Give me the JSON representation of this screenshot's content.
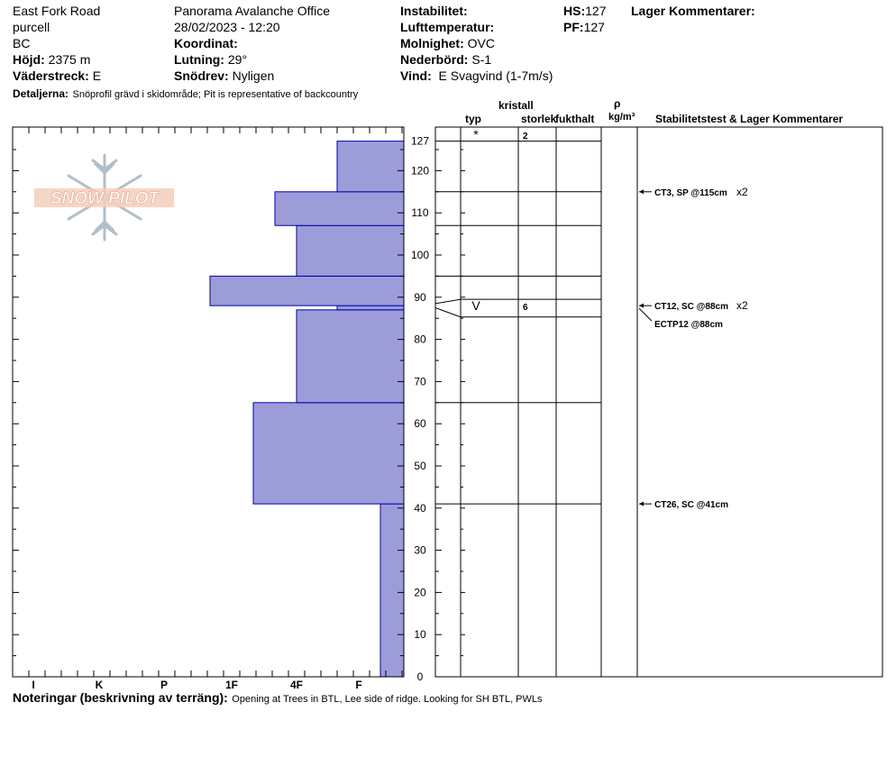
{
  "header": {
    "location": "East Fork Road",
    "range": "purcell",
    "state": "BC",
    "elevation_label": "Höjd:",
    "elevation_value": "2375 m",
    "aspect_label": "Väderstreck:",
    "aspect_value": "E",
    "details_label": "Detaljerna:",
    "details_value": "Snöprofil grävd i skidområde;  Pit is representative of backcountry",
    "office": "Panorama Avalanche Office",
    "datetime": "28/02/2023 - 12:20",
    "coord_label": "Koordinat:",
    "slope_label": "Lutning:",
    "slope_value": "29°",
    "drift_label": "Snödrev:",
    "drift_value": "Nyligen",
    "instability_label": "Instabilitet:",
    "airtemp_label": "Lufttemperatur:",
    "sky_label": "Molnighet:",
    "sky_value": "OVC",
    "precip_label": "Nederbörd:",
    "precip_value": "S-1",
    "wind_label": "Vind:",
    "wind_value": "E Svagvind (1-7m/s)",
    "hs_label": "HS:",
    "hs_value": "127",
    "pf_label": "PF:",
    "pf_value": "127",
    "layer_comments_label": "Lager Kommentarer:"
  },
  "columns": {
    "crystal": "kristall",
    "type": "typ",
    "size": "storlek",
    "moisture": "fukthalt",
    "density_symbol": "ρ",
    "density_unit": "kg/m³",
    "stability": "Stabilitetstest & Lager Kommentarer"
  },
  "footer": {
    "notes_label": "Noteringar (beskrivning av terräng):",
    "notes_value": "Opening at Trees in BTL, Lee side of ridge.  Looking for SH BTL, PWLs"
  },
  "logo_text": "SNOW PILOT",
  "colors": {
    "hardness_fill": "#9c9cd9",
    "hardness_stroke": "#0000aa"
  },
  "chart_data": {
    "type": "bar",
    "orientation": "horizontal",
    "y_axis": {
      "range": [
        0,
        127
      ],
      "ticks": [
        0,
        10,
        20,
        30,
        40,
        50,
        60,
        70,
        80,
        90,
        100,
        110,
        120,
        127
      ]
    },
    "x_axis": {
      "categories": [
        "I",
        "K",
        "P",
        "1F",
        "4F",
        "F"
      ]
    },
    "hardness_layers": [
      {
        "bottom": 0,
        "top": 41,
        "hardness": "F-"
      },
      {
        "bottom": 41,
        "top": 65,
        "hardness": "1F-"
      },
      {
        "bottom": 65,
        "top": 87,
        "hardness": "4F"
      },
      {
        "bottom": 87,
        "top": 88,
        "hardness": "F+"
      },
      {
        "bottom": 88,
        "top": 95,
        "hardness": "1F+"
      },
      {
        "bottom": 95,
        "top": 107,
        "hardness": "4F"
      },
      {
        "bottom": 107,
        "top": 115,
        "hardness": "4F+"
      },
      {
        "bottom": 115,
        "top": 127,
        "hardness": "F+"
      }
    ],
    "layer_boundaries": [
      127,
      115,
      107,
      95,
      89.5,
      85.3,
      65,
      41
    ],
    "grain_layers": [
      {
        "height": 127,
        "type": "*",
        "size": "2"
      },
      {
        "height": 88,
        "type": "V",
        "size": "6"
      }
    ],
    "stability_tests": [
      {
        "height": 115,
        "label": "CT3, SP @115cm",
        "mult": "x2"
      },
      {
        "height": 88,
        "label": "CT12, SC @88cm",
        "mult": "x2",
        "extra": "ECTP12 @88cm"
      },
      {
        "height": 41,
        "label": "CT26, SC @41cm",
        "mult": ""
      }
    ]
  }
}
